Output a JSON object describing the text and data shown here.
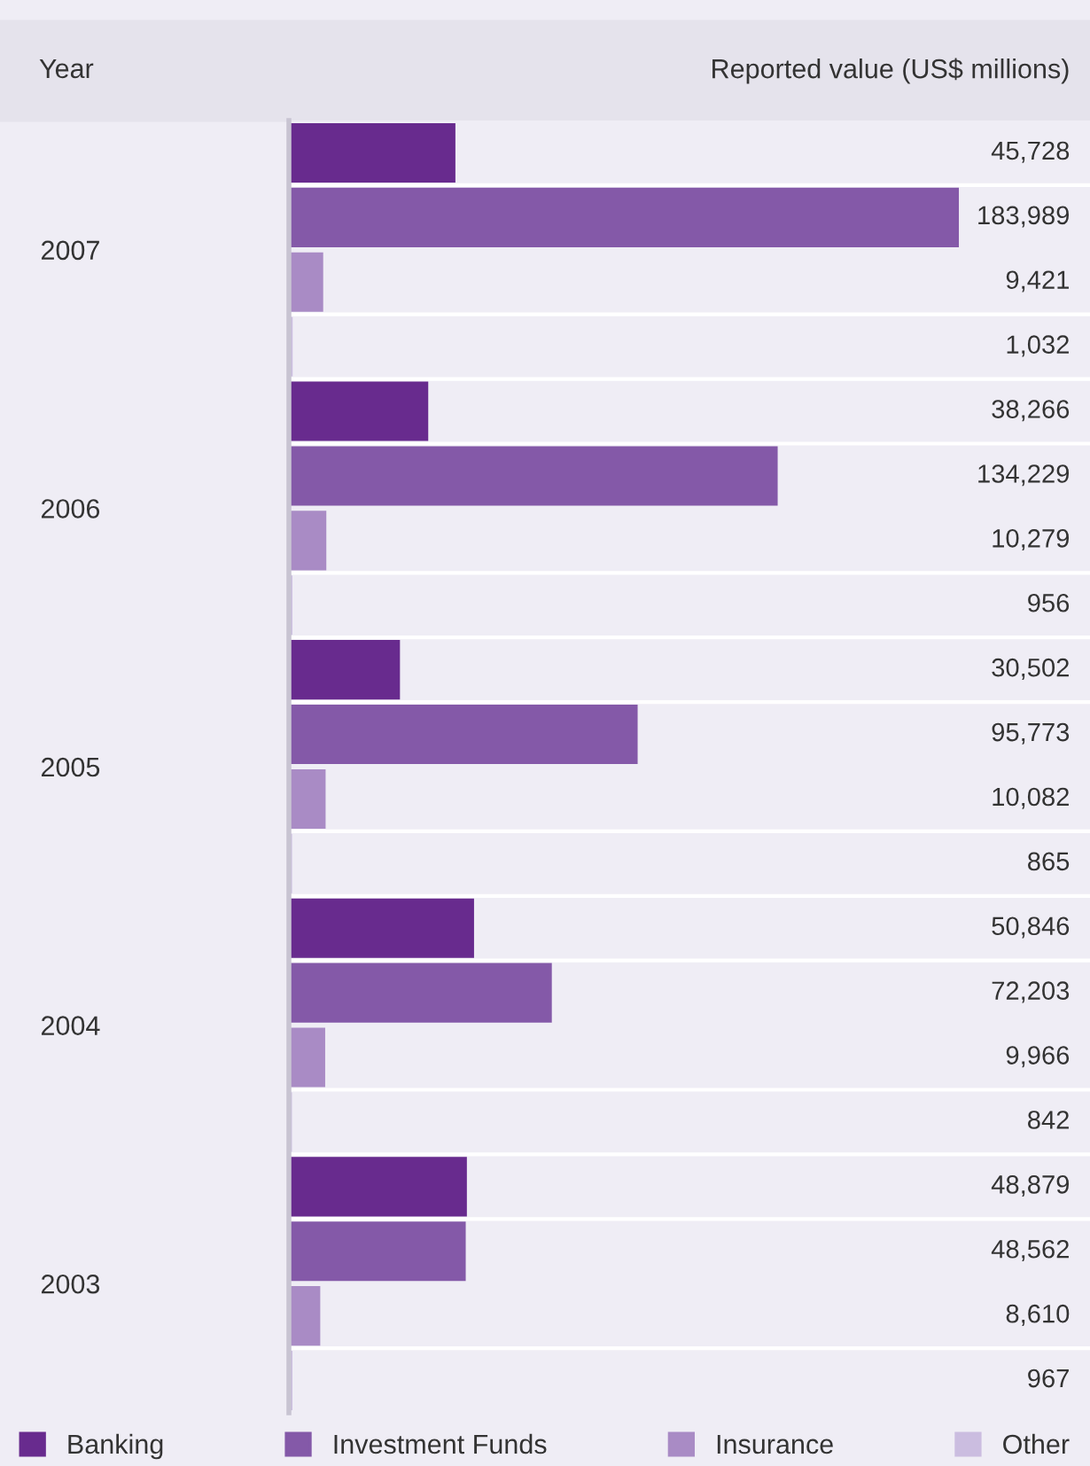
{
  "chart_data": {
    "type": "bar",
    "orientation": "horizontal",
    "xlabel": "Reported value (US$ millions)",
    "ylabel": "Year",
    "categories": [
      "2007",
      "2006",
      "2005",
      "2004",
      "2003"
    ],
    "series": [
      {
        "name": "Banking",
        "color": "#682b8e",
        "values": [
          45728,
          38266,
          30502,
          50846,
          48879
        ],
        "value_labels": [
          "45,728",
          "38,266",
          "30,502",
          "50,846",
          "48,879"
        ]
      },
      {
        "name": "Investment Funds",
        "color": "#8459a8",
        "values": [
          183989,
          134229,
          95773,
          72203,
          48562
        ],
        "value_labels": [
          "183,989",
          "134,229",
          "95,773",
          "72,203",
          "48,562"
        ]
      },
      {
        "name": "Insurance",
        "color": "#a98bc5",
        "values": [
          9421,
          10279,
          10082,
          9966,
          8610
        ],
        "value_labels": [
          "9,421",
          "10,279",
          "10,082",
          "9,966",
          "8,610"
        ]
      },
      {
        "name": "Other",
        "color": "#cbbde0",
        "values": [
          1032,
          956,
          865,
          842,
          967
        ],
        "value_labels": [
          "1,032",
          "956",
          "865",
          "842",
          "967"
        ]
      }
    ],
    "xlim": [
      0,
      220000
    ],
    "tick_labels": "y",
    "legend": "bottom",
    "grid": "y"
  }
}
